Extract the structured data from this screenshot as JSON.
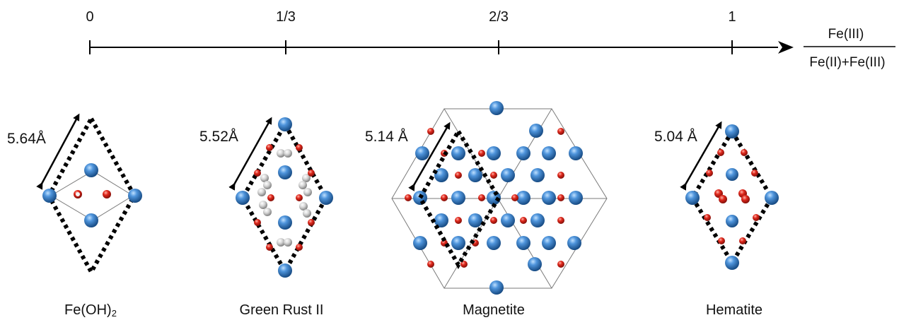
{
  "axis": {
    "ticks": [
      {
        "label": "0",
        "value": 0
      },
      {
        "label": "1/3",
        "value": 0.3333
      },
      {
        "label": "2/3",
        "value": 0.6667
      },
      {
        "label": "1",
        "value": 1
      }
    ],
    "ratio_numerator": "Fe(III)",
    "ratio_denominator": "Fe(II)+Fe(III)"
  },
  "structures": [
    {
      "id": "fe-oh2",
      "name": "Fe(OH)",
      "name_sub": "2",
      "lattice": "5.64Å",
      "ratio": 0
    },
    {
      "id": "green-rust-ii",
      "name": "Green Rust II",
      "lattice": "5.52Å",
      "ratio": 0.3333
    },
    {
      "id": "magnetite",
      "name": "Magnetite",
      "lattice": "5.14 Å",
      "ratio": 0.6667
    },
    {
      "id": "hematite",
      "name": "Hematite",
      "lattice": "5.04 Å",
      "ratio": 1
    }
  ],
  "colors": {
    "fe_atom": "#2b6cb0",
    "o_atom": "#d42a1e",
    "h_atom": "#c9c9c9",
    "cell_outline": "#000000",
    "axis": "#000000"
  }
}
